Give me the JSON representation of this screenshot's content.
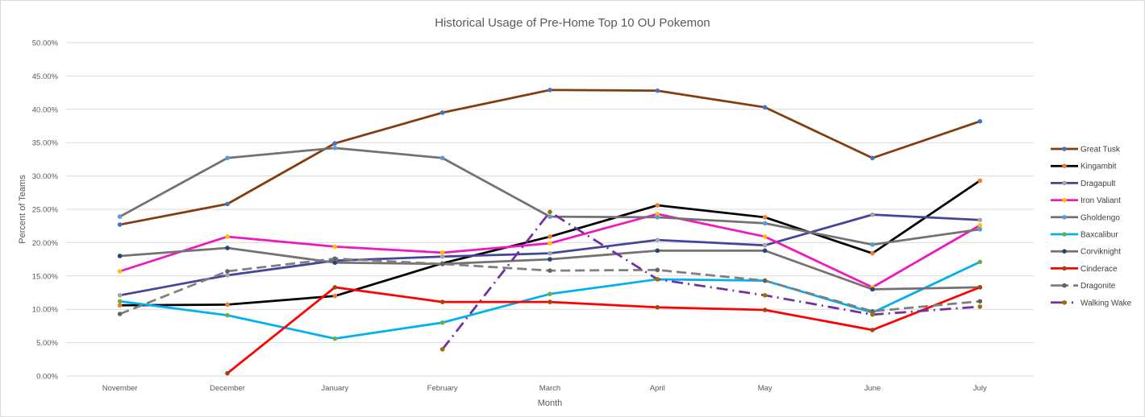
{
  "chart_data": {
    "type": "line",
    "title": "Historical Usage of Pre-Home Top 10 OU Pokemon",
    "xlabel": "Month",
    "ylabel": "Percent of Teams",
    "categories": [
      "November",
      "December",
      "January",
      "February",
      "March",
      "April",
      "May",
      "June",
      "July"
    ],
    "ylim": [
      0,
      50
    ],
    "yticks": [
      "0.00%",
      "5.00%",
      "10.00%",
      "15.00%",
      "20.00%",
      "25.00%",
      "30.00%",
      "35.00%",
      "40.00%",
      "45.00%",
      "50.00%"
    ],
    "grid": true,
    "legend": "right",
    "series": [
      {
        "name": "Great Tusk",
        "color": "#843c0c",
        "marker": "#4472c4",
        "dash": "solid",
        "values": [
          22.7,
          25.8,
          34.9,
          39.5,
          42.9,
          42.8,
          40.3,
          32.7,
          38.2
        ]
      },
      {
        "name": "Kingambit",
        "color": "#000000",
        "marker": "#ed7d31",
        "dash": "solid",
        "values": [
          10.6,
          10.7,
          12.0,
          16.9,
          20.9,
          25.6,
          23.8,
          18.4,
          29.3
        ]
      },
      {
        "name": "Dragapult",
        "color": "#44449c",
        "marker": "#a5a5a5",
        "dash": "solid",
        "values": [
          12.1,
          15.1,
          17.3,
          17.9,
          18.4,
          20.4,
          19.6,
          24.2,
          23.4
        ]
      },
      {
        "name": "Iron Valiant",
        "color": "#ee17c0",
        "marker": "#ffc000",
        "dash": "solid",
        "values": [
          15.7,
          20.9,
          19.4,
          18.5,
          19.9,
          24.3,
          20.9,
          13.3,
          22.6
        ]
      },
      {
        "name": "Gholdengo",
        "color": "#767171",
        "marker": "#5b9bd5",
        "dash": "solid",
        "values": [
          23.9,
          32.7,
          34.2,
          32.7,
          23.9,
          23.8,
          22.9,
          19.7,
          22.0
        ]
      },
      {
        "name": "Baxcalibur",
        "color": "#00b0f0",
        "marker": "#70ad47",
        "dash": "solid",
        "values": [
          11.2,
          9.1,
          5.6,
          8.0,
          12.3,
          14.5,
          14.3,
          9.5,
          17.1
        ]
      },
      {
        "name": "Corviknight",
        "color": "#767171",
        "marker": "#264478",
        "dash": "solid",
        "values": [
          18.0,
          19.2,
          17.0,
          16.8,
          17.5,
          18.8,
          18.8,
          13.0,
          13.3
        ]
      },
      {
        "name": "Cinderace",
        "color": "#ff0000",
        "marker": "#9e480e",
        "dash": "solid",
        "values": [
          null,
          0.4,
          13.3,
          11.1,
          11.1,
          10.3,
          9.9,
          6.9,
          13.3
        ]
      },
      {
        "name": "Dragonite",
        "color": "#7f7f7f",
        "marker": "#636363",
        "dash": "dash",
        "values": [
          9.3,
          15.7,
          17.6,
          16.8,
          15.8,
          15.9,
          14.3,
          9.7,
          11.2
        ]
      },
      {
        "name": "Walking Wake",
        "color": "#7030a0",
        "marker": "#997300",
        "dash": "dashdot",
        "values": [
          null,
          null,
          null,
          4.0,
          24.6,
          14.5,
          12.1,
          9.2,
          10.4
        ]
      }
    ]
  }
}
